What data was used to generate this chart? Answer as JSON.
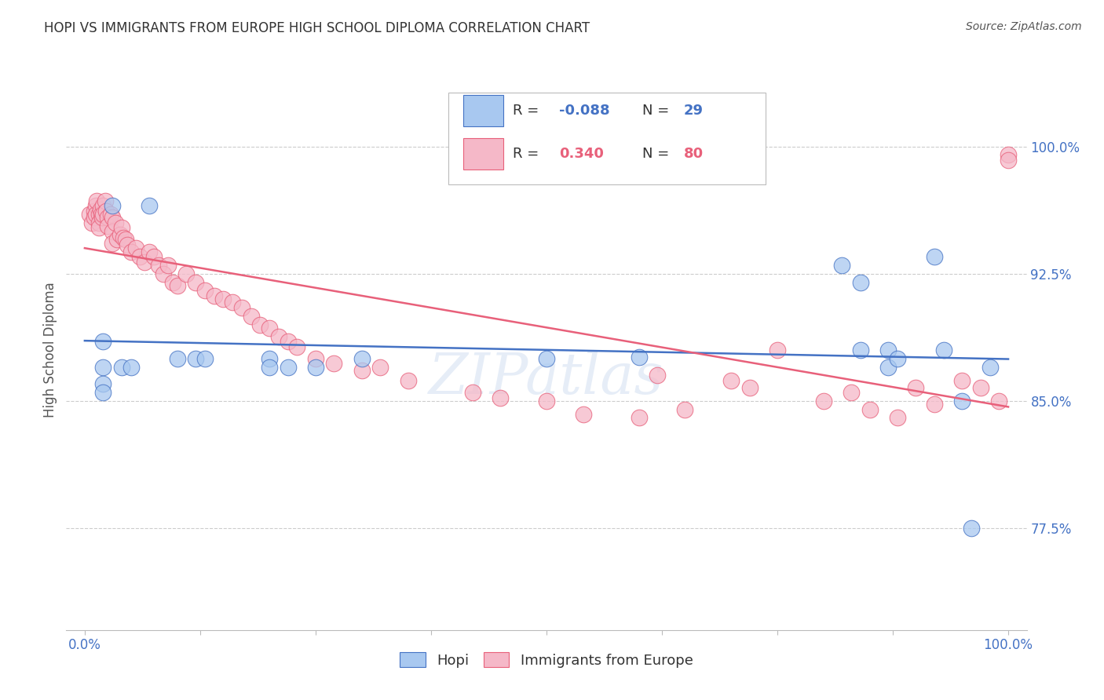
{
  "title": "HOPI VS IMMIGRANTS FROM EUROPE HIGH SCHOOL DIPLOMA CORRELATION CHART",
  "source": "Source: ZipAtlas.com",
  "ylabel": "High School Diploma",
  "ytick_labels": [
    "77.5%",
    "85.0%",
    "92.5%",
    "100.0%"
  ],
  "ytick_values": [
    0.775,
    0.85,
    0.925,
    1.0
  ],
  "xlim": [
    -0.02,
    1.02
  ],
  "ylim": [
    0.715,
    1.045
  ],
  "legend_label1": "Hopi",
  "legend_label2": "Immigrants from Europe",
  "R1": "-0.088",
  "N1": "29",
  "R2": "0.340",
  "N2": "80",
  "color_blue": "#A8C8F0",
  "color_pink": "#F5B8C8",
  "color_blue_line": "#4472C4",
  "color_pink_line": "#E8607A",
  "background_color": "#FFFFFF",
  "watermark": "ZIPatlas",
  "hopi_x": [
    0.02,
    0.02,
    0.02,
    0.02,
    0.03,
    0.04,
    0.05,
    0.07,
    0.1,
    0.12,
    0.13,
    0.2,
    0.2,
    0.22,
    0.25,
    0.3,
    0.5,
    0.6,
    0.82,
    0.84,
    0.84,
    0.87,
    0.87,
    0.88,
    0.92,
    0.93,
    0.95,
    0.96,
    0.98
  ],
  "hopi_y": [
    0.87,
    0.86,
    0.885,
    0.855,
    0.965,
    0.87,
    0.87,
    0.965,
    0.875,
    0.875,
    0.875,
    0.875,
    0.87,
    0.87,
    0.87,
    0.875,
    0.875,
    0.876,
    0.93,
    0.88,
    0.92,
    0.88,
    0.87,
    0.875,
    0.935,
    0.88,
    0.85,
    0.775,
    0.87
  ],
  "europe_x": [
    0.005,
    0.008,
    0.01,
    0.01,
    0.012,
    0.012,
    0.013,
    0.015,
    0.015,
    0.015,
    0.017,
    0.018,
    0.019,
    0.02,
    0.02,
    0.022,
    0.023,
    0.025,
    0.025,
    0.028,
    0.03,
    0.03,
    0.03,
    0.033,
    0.035,
    0.038,
    0.04,
    0.042,
    0.044,
    0.046,
    0.05,
    0.055,
    0.06,
    0.065,
    0.07,
    0.075,
    0.08,
    0.085,
    0.09,
    0.095,
    0.1,
    0.11,
    0.12,
    0.13,
    0.14,
    0.15,
    0.16,
    0.17,
    0.18,
    0.19,
    0.2,
    0.21,
    0.22,
    0.23,
    0.25,
    0.27,
    0.3,
    0.32,
    0.35,
    0.42,
    0.45,
    0.5,
    0.54,
    0.6,
    0.62,
    0.65,
    0.7,
    0.72,
    0.75,
    0.8,
    0.83,
    0.85,
    0.88,
    0.9,
    0.92,
    0.95,
    0.97,
    0.99,
    1.0,
    1.0
  ],
  "europe_y": [
    0.96,
    0.955,
    0.962,
    0.958,
    0.965,
    0.96,
    0.968,
    0.96,
    0.955,
    0.952,
    0.963,
    0.96,
    0.958,
    0.965,
    0.96,
    0.968,
    0.962,
    0.958,
    0.953,
    0.96,
    0.958,
    0.95,
    0.943,
    0.955,
    0.945,
    0.948,
    0.952,
    0.946,
    0.945,
    0.942,
    0.938,
    0.94,
    0.935,
    0.932,
    0.938,
    0.935,
    0.93,
    0.925,
    0.93,
    0.92,
    0.918,
    0.925,
    0.92,
    0.915,
    0.912,
    0.91,
    0.908,
    0.905,
    0.9,
    0.895,
    0.893,
    0.888,
    0.885,
    0.882,
    0.875,
    0.872,
    0.868,
    0.87,
    0.862,
    0.855,
    0.852,
    0.85,
    0.842,
    0.84,
    0.865,
    0.845,
    0.862,
    0.858,
    0.88,
    0.85,
    0.855,
    0.845,
    0.84,
    0.858,
    0.848,
    0.862,
    0.858,
    0.85,
    0.995,
    0.992
  ]
}
